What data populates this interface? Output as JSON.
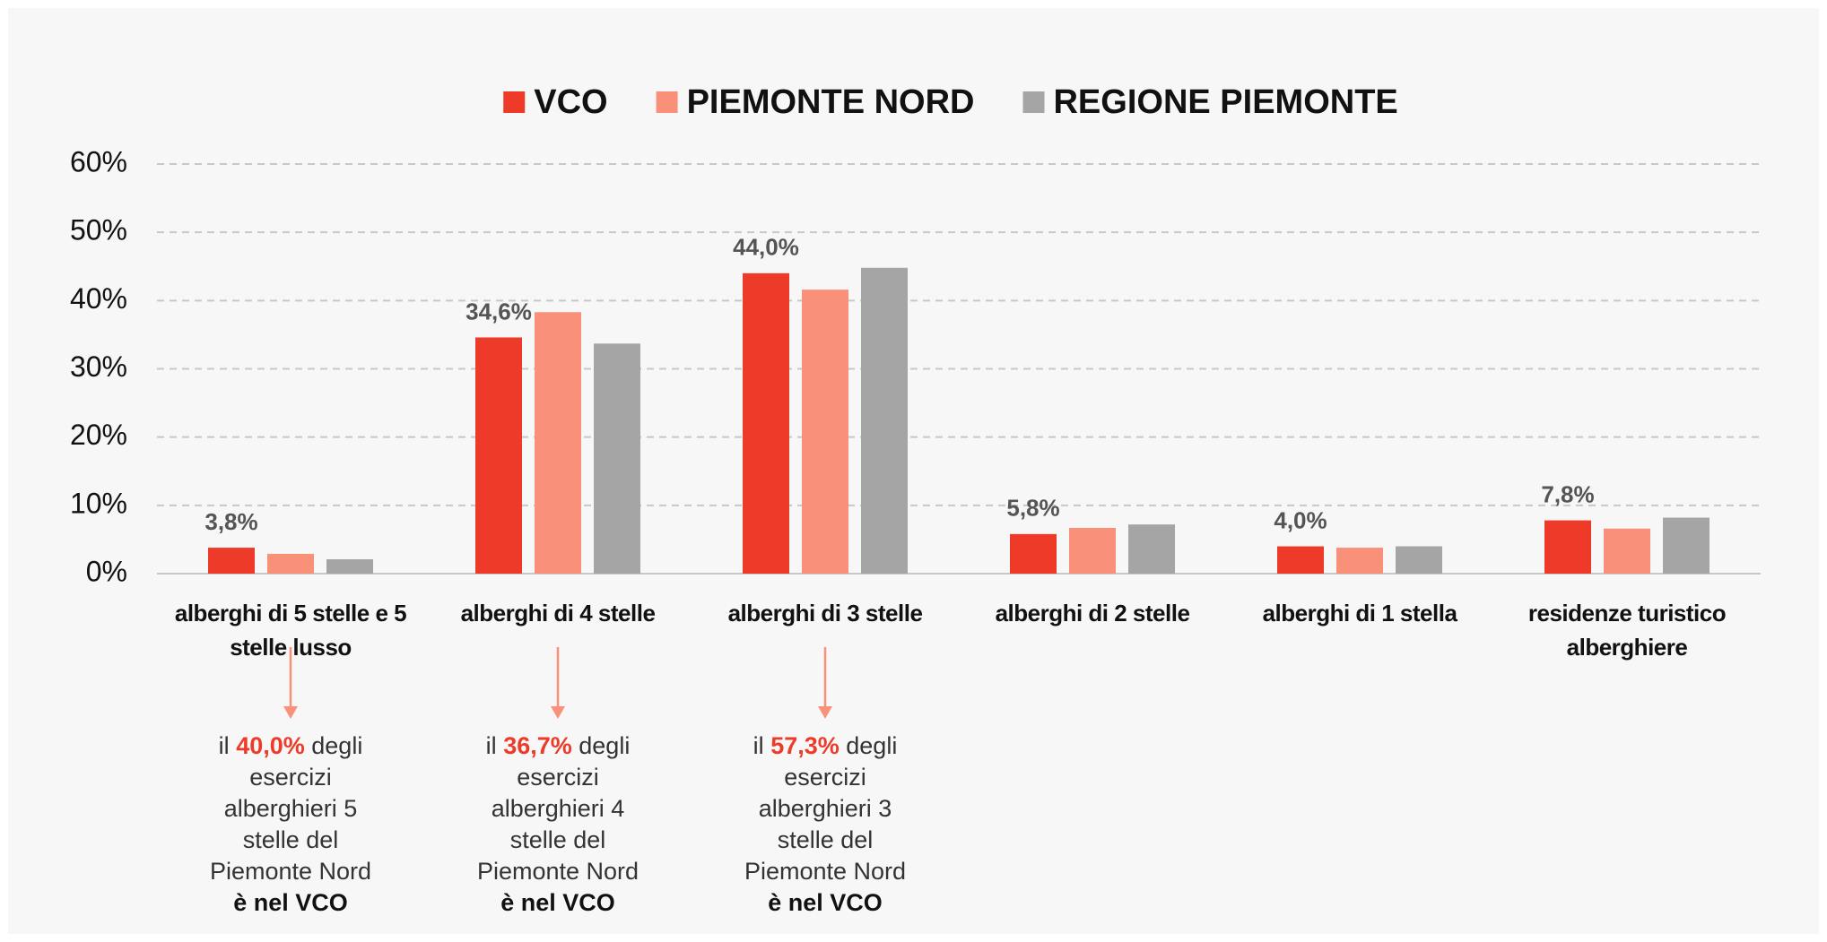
{
  "chart_data": {
    "type": "bar",
    "categories": [
      "alberghi di 5 stelle e 5 stelle lusso",
      "alberghi di 4 stelle",
      "alberghi di 3 stelle",
      "alberghi di 2 stelle",
      "alberghi di 1 stella",
      "residenze turistico alberghiere"
    ],
    "series": [
      {
        "name": "VCO",
        "color": "#ee3b29",
        "values": [
          3.8,
          34.6,
          44.0,
          5.8,
          4.0,
          7.8
        ],
        "value_labels": [
          "3,8%",
          "34,6%",
          "44,0%",
          "5,8%",
          "4,0%",
          "7,8%"
        ]
      },
      {
        "name": "PIEMONTE NORD",
        "color": "#f9917a",
        "values": [
          2.9,
          38.3,
          41.6,
          6.7,
          3.8,
          6.6
        ]
      },
      {
        "name": "REGIONE PIEMONTE",
        "color": "#a5a5a5",
        "values": [
          2.1,
          33.7,
          44.8,
          7.2,
          4.0,
          8.2
        ]
      }
    ],
    "ylim": [
      0,
      60
    ],
    "yticks": [
      {
        "value": 0,
        "label": "0%"
      },
      {
        "value": 10,
        "label": "10%"
      },
      {
        "value": 20,
        "label": "20%"
      },
      {
        "value": 30,
        "label": "30%"
      },
      {
        "value": 40,
        "label": "40%"
      },
      {
        "value": 50,
        "label": "50%"
      },
      {
        "value": 60,
        "label": "60%"
      }
    ],
    "grid": true,
    "legend": "top",
    "annotations": [
      {
        "prefix": "il",
        "highlight": "40,0%",
        "text": "degli esercizi alberghieri 5 stelle del Piemonte Nord",
        "bold": "è nel VCO"
      },
      {
        "prefix": "il",
        "highlight": "36,7%",
        "text": "degli esercizi alberghieri 4 stelle del Piemonte Nord",
        "bold": "è nel VCO"
      },
      {
        "prefix": "il",
        "highlight": "57,3%",
        "text": "degli esercizi alberghieri 3 stelle del Piemonte Nord",
        "bold": "è nel VCO"
      }
    ]
  }
}
